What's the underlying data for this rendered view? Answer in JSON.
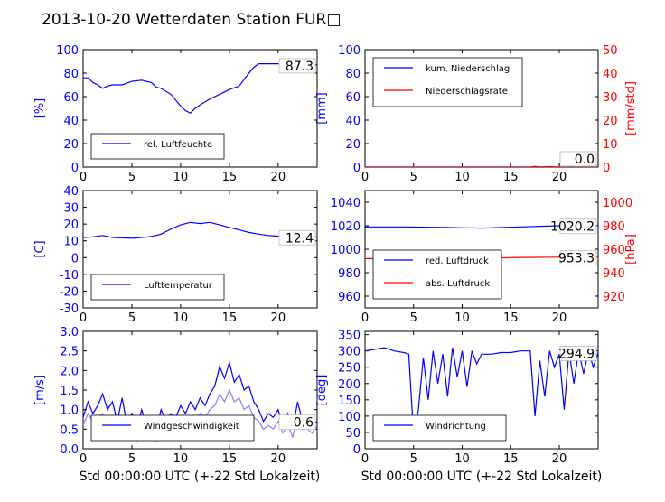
{
  "title": "2013-10-20 Wetterdaten Station FUR□",
  "xlabel": "Std 00:00:00 UTC (+-22 Std Lokalzeit)",
  "colors": {
    "primary": "#0000ff",
    "secondary": "#ff0000",
    "light": "#8080ff"
  },
  "chart_data": [
    {
      "id": "humidity",
      "type": "line",
      "ylabel": "[%]",
      "ylim": [
        0,
        100
      ],
      "yticks": [
        0,
        20,
        40,
        60,
        80,
        100
      ],
      "xlim": [
        0,
        24
      ],
      "xticks": [
        0,
        5,
        10,
        15,
        20
      ],
      "legend_loc": "lower-left",
      "series": [
        {
          "name": "rel. Luftfeuchte",
          "color": "#0000ff",
          "x": [
            0,
            0.5,
            1,
            1.5,
            2,
            2.5,
            3,
            4,
            5,
            6,
            7,
            7.5,
            8,
            9,
            10,
            10.5,
            11,
            11.5,
            12,
            13,
            14,
            15,
            16,
            17,
            17.5,
            18,
            19,
            20,
            21,
            22,
            23,
            24
          ],
          "y": [
            76,
            76,
            72,
            70,
            67,
            69,
            70,
            70,
            73,
            74,
            72,
            68,
            67,
            62,
            52,
            48,
            46,
            50,
            53,
            58,
            62,
            66,
            69,
            80,
            85,
            88,
            88,
            88,
            87,
            87,
            88,
            87
          ]
        }
      ],
      "last_value_label": "87.3"
    },
    {
      "id": "precip",
      "type": "line",
      "ylabel": "[mm]",
      "ylim": [
        0,
        100
      ],
      "yticks": [
        0,
        20,
        40,
        60,
        80,
        100
      ],
      "ylabel2": "[mm/std]",
      "ylim2": [
        0,
        50
      ],
      "yticks2": [
        0,
        10,
        20,
        30,
        40,
        50
      ],
      "xlim": [
        0,
        24
      ],
      "xticks": [
        0,
        5,
        10,
        15,
        20
      ],
      "legend_loc": "upper-left",
      "series": [
        {
          "name": "kum. Niederschlag",
          "color": "#0000ff",
          "axis": "left",
          "x": [
            0,
            24
          ],
          "y": [
            0,
            0
          ]
        },
        {
          "name": "Niederschlagsrate",
          "color": "#ff0000",
          "axis": "right",
          "x": [
            0,
            17,
            17.5,
            18,
            19,
            20,
            21,
            22,
            23,
            24
          ],
          "y": [
            0,
            0,
            0.3,
            0,
            0.2,
            0,
            0.4,
            0,
            0.2,
            0
          ]
        }
      ],
      "last_value_labels": [
        "0.0",
        "0.0"
      ]
    },
    {
      "id": "temperature",
      "type": "line",
      "ylabel": "[C]",
      "ylim": [
        -30,
        40
      ],
      "yticks": [
        -30,
        -20,
        -10,
        0,
        10,
        20,
        30,
        40
      ],
      "xlim": [
        0,
        24
      ],
      "xticks": [
        0,
        5,
        10,
        15,
        20
      ],
      "legend_loc": "lower-left",
      "series": [
        {
          "name": "Lufttemperatur",
          "color": "#0000ff",
          "x": [
            0,
            1,
            2,
            3,
            4,
            5,
            6,
            7,
            8,
            9,
            10,
            11,
            12,
            13,
            14,
            15,
            16,
            17,
            18,
            19,
            20,
            21,
            22,
            23,
            24
          ],
          "y": [
            12,
            12.3,
            13.2,
            12,
            11.8,
            11.5,
            12,
            12.6,
            14,
            17,
            19.5,
            21,
            20.3,
            21,
            19.5,
            18,
            16.5,
            15,
            14,
            13.2,
            12.8,
            12.6,
            12.4,
            12.4,
            12.4
          ]
        }
      ],
      "last_value_label": "12.4"
    },
    {
      "id": "pressure",
      "type": "line",
      "ylim": [
        950,
        1050
      ],
      "yticks": [
        960,
        980,
        1000,
        1020,
        1040
      ],
      "ylabel2": "[hPa]",
      "ylim2": [
        910,
        1010
      ],
      "yticks2": [
        920,
        940,
        960,
        980,
        1000
      ],
      "xlim": [
        0,
        24
      ],
      "xticks": [
        0,
        5,
        10,
        15,
        20
      ],
      "legend_loc": "lower-left",
      "series": [
        {
          "name": "red. Luftdruck",
          "color": "#0000ff",
          "axis": "left",
          "x": [
            0,
            4,
            8,
            12,
            16,
            20,
            24
          ],
          "y": [
            1019,
            1019,
            1018.5,
            1018,
            1019,
            1020,
            1020.2
          ]
        },
        {
          "name": "abs. Luftdruck",
          "color": "#ff0000",
          "axis": "right",
          "x": [
            0,
            4,
            8,
            12,
            16,
            20,
            24
          ],
          "y": [
            952,
            952,
            952.3,
            952.5,
            953,
            953.2,
            953.3
          ]
        }
      ],
      "last_value_labels": [
        "1020.2",
        "953.3"
      ]
    },
    {
      "id": "windspeed",
      "type": "line",
      "ylabel": "[m/s]",
      "ylim": [
        0,
        3
      ],
      "yticks": [
        0,
        0.5,
        1,
        1.5,
        2,
        2.5,
        3
      ],
      "ytick_labels": [
        "0.0",
        "0.5",
        "1.0",
        "1.5",
        "2.0",
        "2.5",
        "3.0"
      ],
      "xlim": [
        0,
        24
      ],
      "xticks": [
        0,
        5,
        10,
        15,
        20
      ],
      "legend_loc": "lower-center",
      "series": [
        {
          "name": "Windgeschwindigkeit",
          "color": "#0000ff",
          "x": [
            0,
            0.5,
            1,
            1.5,
            2,
            2.5,
            3,
            3.5,
            4,
            4.5,
            5,
            5.5,
            6,
            6.5,
            7,
            7.5,
            8,
            8.5,
            9,
            9.5,
            10,
            10.5,
            11,
            11.5,
            12,
            12.5,
            13,
            13.5,
            14,
            14.5,
            15,
            15.5,
            16,
            16.5,
            17,
            17.5,
            18,
            18.5,
            19,
            19.5,
            20,
            20.5,
            21,
            21.5,
            22,
            22.5,
            23,
            23.5,
            24
          ],
          "y": [
            0.8,
            1.2,
            0.9,
            1.1,
            1.4,
            1.0,
            1.2,
            0.7,
            1.3,
            0.6,
            0.9,
            0.5,
            1.0,
            0.6,
            0.8,
            0.5,
            1.0,
            0.7,
            0.9,
            0.8,
            1.1,
            0.9,
            1.2,
            1.0,
            1.3,
            1.1,
            1.4,
            1.6,
            2.1,
            1.8,
            2.2,
            1.7,
            1.9,
            1.5,
            1.6,
            1.2,
            1.0,
            0.7,
            0.9,
            0.8,
            1.0,
            0.6,
            0.9,
            0.5,
            1.2,
            0.7,
            0.8,
            0.6,
            0.7
          ]
        },
        {
          "name": "",
          "color": "#8080ff",
          "x": [
            0,
            0.5,
            1,
            1.5,
            2,
            2.5,
            3,
            3.5,
            4,
            4.5,
            5,
            5.5,
            6,
            6.5,
            7,
            7.5,
            8,
            8.5,
            9,
            9.5,
            10,
            10.5,
            11,
            11.5,
            12,
            12.5,
            13,
            13.5,
            14,
            14.5,
            15,
            15.5,
            16,
            16.5,
            17,
            17.5,
            18,
            18.5,
            19,
            19.5,
            20,
            20.5,
            21,
            21.5,
            22,
            22.5,
            23,
            23.5,
            24
          ],
          "y": [
            0.6,
            0.9,
            0.7,
            0.8,
            0.9,
            0.6,
            0.7,
            0.4,
            0.8,
            0.3,
            0.6,
            0.2,
            0.5,
            0.3,
            0.5,
            0.2,
            0.6,
            0.4,
            0.5,
            0.5,
            0.7,
            0.6,
            0.8,
            0.7,
            0.9,
            0.8,
            1.0,
            1.1,
            1.4,
            1.2,
            1.5,
            1.2,
            1.3,
            1.0,
            1.1,
            0.8,
            0.7,
            0.5,
            0.6,
            0.5,
            0.7,
            0.4,
            0.6,
            0.3,
            0.8,
            0.5,
            0.5,
            0.4,
            0.6
          ]
        }
      ],
      "last_value_label": "0.6"
    },
    {
      "id": "winddir",
      "type": "line",
      "ylabel": "[deg]",
      "ylim": [
        0,
        360
      ],
      "yticks": [
        0,
        50,
        100,
        150,
        200,
        250,
        300,
        350
      ],
      "xlim": [
        0,
        24
      ],
      "xticks": [
        0,
        5,
        10,
        15,
        20
      ],
      "legend_loc": "lower-left",
      "series": [
        {
          "name": "Windrichtung",
          "color": "#0000ff",
          "x": [
            0,
            1,
            2,
            3,
            4,
            4.5,
            5,
            5.5,
            6,
            6.5,
            7,
            7.5,
            8,
            8.5,
            9,
            9.5,
            10,
            10.5,
            11,
            11.5,
            12,
            13,
            14,
            15,
            16,
            17,
            17.5,
            18,
            18.5,
            19,
            19.5,
            20,
            20.5,
            21,
            21.5,
            22,
            22.5,
            23,
            23.5,
            24
          ],
          "y": [
            300,
            305,
            310,
            300,
            295,
            290,
            40,
            120,
            280,
            150,
            300,
            200,
            290,
            160,
            310,
            220,
            300,
            190,
            300,
            260,
            290,
            290,
            295,
            295,
            300,
            300,
            100,
            270,
            160,
            300,
            250,
            290,
            120,
            300,
            200,
            300,
            230,
            300,
            250,
            295
          ]
        }
      ],
      "last_value_label": "294.9"
    }
  ]
}
